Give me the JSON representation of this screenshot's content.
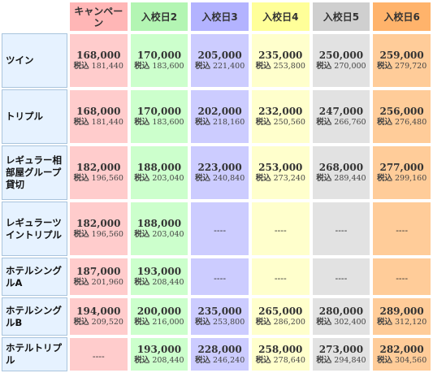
{
  "headers": [
    "キャンペーン",
    "入校日2",
    "入校日3",
    "入校日4",
    "入校日5",
    "入校日6"
  ],
  "tax_label": "税込",
  "rows": [
    {
      "room": "ツイン",
      "cells": [
        {
          "price": "168,000",
          "tax": "181,440"
        },
        {
          "price": "170,000",
          "tax": "183,600"
        },
        {
          "price": "205,000",
          "tax": "221,400"
        },
        {
          "price": "235,000",
          "tax": "253,800"
        },
        {
          "price": "250,000",
          "tax": "270,000"
        },
        {
          "price": "259,000",
          "tax": "279,720"
        }
      ]
    },
    {
      "room": "トリプル",
      "cells": [
        {
          "price": "168,000",
          "tax": "181,440"
        },
        {
          "price": "170,000",
          "tax": "183,600"
        },
        {
          "price": "202,000",
          "tax": "218,160"
        },
        {
          "price": "232,000",
          "tax": "250,560"
        },
        {
          "price": "247,000",
          "tax": "266,760"
        },
        {
          "price": "256,000",
          "tax": "276,480"
        }
      ]
    },
    {
      "room": "レギュラー相部屋グループ貸切",
      "cells": [
        {
          "price": "182,000",
          "tax": "196,560"
        },
        {
          "price": "188,000",
          "tax": "203,040"
        },
        {
          "price": "223,000",
          "tax": "240,840"
        },
        {
          "price": "253,000",
          "tax": "273,240"
        },
        {
          "price": "268,000",
          "tax": "289,440"
        },
        {
          "price": "277,000",
          "tax": "299,160"
        }
      ]
    },
    {
      "room": "レギュラーツイントリプル",
      "cells": [
        {
          "price": "182,000",
          "tax": "196,560"
        },
        {
          "price": "188,000",
          "tax": "203,040"
        },
        {
          "price": "----"
        },
        {
          "price": "----"
        },
        {
          "price": "----"
        },
        {
          "price": "----"
        }
      ]
    },
    {
      "room": "ホテルシングルA",
      "cells": [
        {
          "price": "187,000",
          "tax": "201,960"
        },
        {
          "price": "193,000",
          "tax": "208,440"
        },
        {
          "price": "----"
        },
        {
          "price": "----"
        },
        {
          "price": "----"
        },
        {
          "price": "----"
        }
      ]
    },
    {
      "room": "ホテルシングルB",
      "cells": [
        {
          "price": "194,000",
          "tax": "209,520"
        },
        {
          "price": "200,000",
          "tax": "216,000"
        },
        {
          "price": "235,000",
          "tax": "253,800"
        },
        {
          "price": "265,000",
          "tax": "286,200"
        },
        {
          "price": "280,000",
          "tax": "302,400"
        },
        {
          "price": "289,000",
          "tax": "312,120"
        }
      ]
    },
    {
      "room": "ホテルトリプル",
      "cells": [
        {
          "price": "----"
        },
        {
          "price": "193,000",
          "tax": "208,440"
        },
        {
          "price": "228,000",
          "tax": "246,240"
        },
        {
          "price": "258,000",
          "tax": "278,640"
        },
        {
          "price": "273,000",
          "tax": "294,840"
        },
        {
          "price": "282,000",
          "tax": "304,560"
        }
      ]
    }
  ]
}
